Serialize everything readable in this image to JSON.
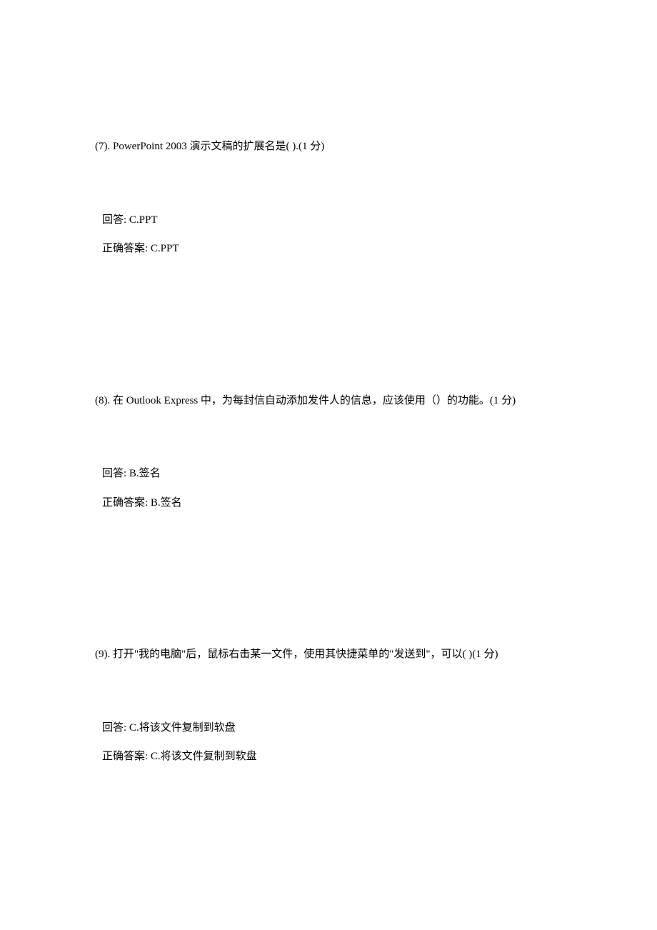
{
  "questions": [
    {
      "number": "(7).",
      "text": "PowerPoint 2003 演示文稿的扩展名是( ).(1 分)",
      "answer_label": "回答:",
      "answer_value": "C.PPT",
      "correct_label": "正确答案:",
      "correct_value": "C.PPT"
    },
    {
      "number": "(8).",
      "text": "在 Outlook Express 中，为每封信自动添加发件人的信息，应该使用（）的功能。(1 分)",
      "answer_label": "回答:",
      "answer_value": "B.签名",
      "correct_label": "正确答案:",
      "correct_value": "B.签名"
    },
    {
      "number": "(9).",
      "text": "打开\"我的电脑\"后，鼠标右击某一文件，使用其快捷菜单的\"发送到\"，可以( )(1 分)",
      "answer_label": "回答:",
      "answer_value": "C.将该文件复制到软盘",
      "correct_label": "正确答案:",
      "correct_value": "C.将该文件复制到软盘"
    }
  ]
}
